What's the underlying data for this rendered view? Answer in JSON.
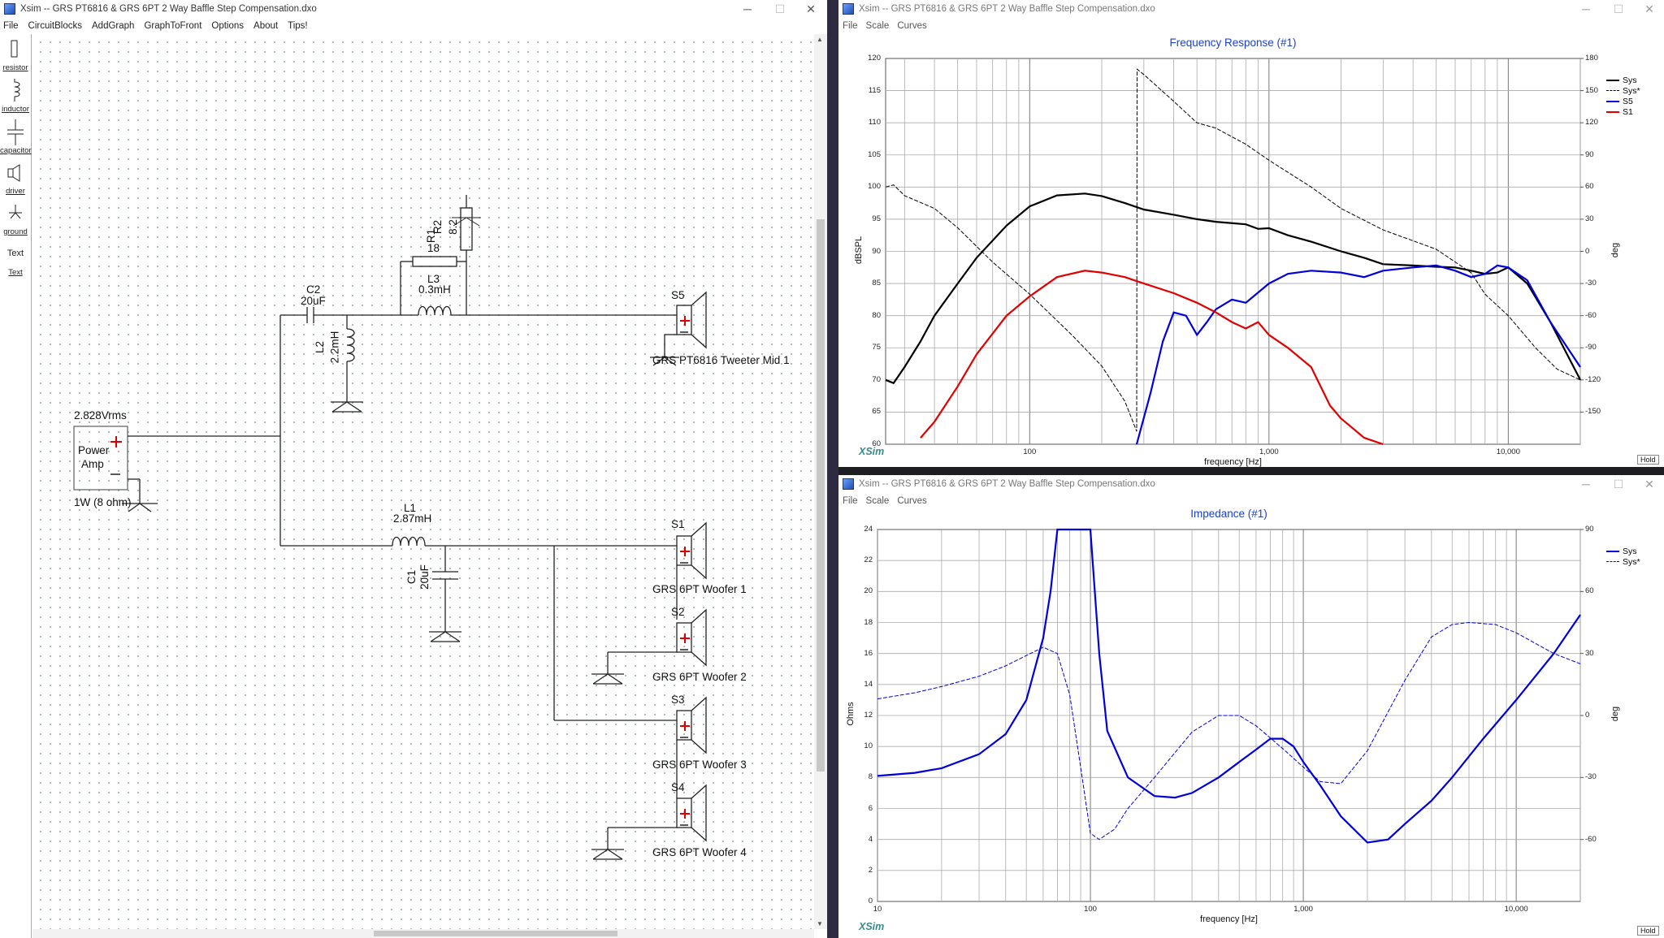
{
  "left_window": {
    "title": "Xsim -- GRS PT6816 & GRS 6PT 2 Way Baffle Step Compensation.dxo",
    "menu": [
      "File",
      "CircuitBlocks",
      "AddGraph",
      "GraphToFront",
      "Options",
      "About",
      "Tips!"
    ],
    "tools": [
      {
        "label": "resistor",
        "icon": "resistor-icon"
      },
      {
        "label": "inductor",
        "icon": "inductor-icon"
      },
      {
        "label": "capacitor",
        "icon": "capacitor-icon"
      },
      {
        "label": "driver",
        "icon": "driver-icon"
      },
      {
        "label": "ground",
        "icon": "ground-icon"
      },
      {
        "label": "Text",
        "icon": "text-icon"
      },
      {
        "label": "Text",
        "icon": "text-link"
      }
    ],
    "schematic": {
      "source_voltage": "2.828Vrms",
      "source_name_1": "Power",
      "source_name_2": "Amp",
      "source_rating": "1W (8 ohm)",
      "c2_name": "C2",
      "c2_value": "20uF",
      "l2_name": "L2",
      "l2_value": "2.2mH",
      "l3_name": "L3",
      "l3_value": "0.3mH",
      "r1_name": "R1",
      "r1_value": "18",
      "r2_name": "R2",
      "r2_value": "8.2",
      "l1_name": "L1",
      "l1_value": "2.87mH",
      "c1_name": "C1",
      "c1_value": "20uF",
      "drivers": [
        {
          "id": "S5",
          "label": "GRS PT6816 Tweeter Mid 1"
        },
        {
          "id": "S1",
          "label": "GRS 6PT Woofer 1"
        },
        {
          "id": "S2",
          "label": "GRS 6PT Woofer 2"
        },
        {
          "id": "S3",
          "label": "GRS 6PT Woofer 3"
        },
        {
          "id": "S4",
          "label": "GRS 6PT Woofer 4"
        }
      ]
    }
  },
  "freq_window": {
    "title": "Xsim -- GRS PT6816 & GRS 6PT 2 Way Baffle Step Compensation.dxo",
    "menu": [
      "File",
      "Scale",
      "Curves"
    ],
    "brand": "XSim",
    "hold": "Hold"
  },
  "imp_window": {
    "title": "Xsim -- GRS PT6816 & GRS 6PT 2 Way Baffle Step Compensation.dxo",
    "menu": [
      "File",
      "Scale",
      "Curves"
    ],
    "brand": "XSim",
    "hold": "Hold"
  },
  "chart_data": [
    {
      "type": "line",
      "title": "Frequency Response (#1)",
      "xlabel": "frequency [Hz]",
      "ylabel": "dBSPL",
      "y2label": "deg",
      "xscale": "log",
      "xlim": [
        25,
        20000
      ],
      "ylim": [
        60,
        120
      ],
      "y2lim": [
        -180,
        180
      ],
      "x_tick_labels": [
        "100",
        "1,000",
        "10,000"
      ],
      "y_tick_labels": [
        "60",
        "65",
        "70",
        "75",
        "80",
        "85",
        "90",
        "95",
        "100",
        "105",
        "110",
        "115",
        "120"
      ],
      "y2_tick_labels": [
        "-150",
        "-120",
        "-90",
        "-60",
        "-30",
        "0",
        "30",
        "60",
        "90",
        "120",
        "150",
        "180"
      ],
      "grid": true,
      "legend_position": "top-right",
      "series": [
        {
          "name": "Sys",
          "color": "#000000",
          "style": "solid",
          "axis": "left",
          "x": [
            25,
            27,
            30,
            35,
            40,
            50,
            60,
            80,
            100,
            130,
            170,
            200,
            250,
            300,
            400,
            500,
            600,
            800,
            900,
            1000,
            1200,
            1500,
            2000,
            2500,
            3000,
            4000,
            5000,
            6000,
            7000,
            8000,
            9000,
            10000,
            12000,
            15000,
            20000
          ],
          "y": [
            70,
            69.5,
            72,
            76,
            80,
            85,
            89,
            94,
            97,
            98.7,
            99,
            98.6,
            97.5,
            96.5,
            95.7,
            95,
            94.6,
            94.2,
            93.5,
            93.6,
            92.5,
            91.5,
            90,
            89,
            88,
            87.8,
            87.6,
            87.5,
            87,
            86.5,
            86.7,
            87.5,
            85,
            79,
            70
          ]
        },
        {
          "name": "Sys*",
          "color": "#000000",
          "style": "dashed",
          "axis": "right",
          "x": [
            25,
            27,
            30,
            40,
            50,
            70,
            100,
            150,
            200,
            250,
            280,
            281,
            300,
            400,
            500,
            600,
            800,
            1000,
            1500,
            2000,
            3000,
            5000,
            7000,
            8000,
            10000,
            13000,
            16000,
            20000
          ],
          "y": [
            60,
            62,
            52,
            40,
            22,
            -10,
            -40,
            -78,
            -107,
            -140,
            -168,
            170,
            165,
            140,
            120,
            115,
            100,
            85,
            60,
            40,
            20,
            2,
            -20,
            -40,
            -60,
            -90,
            -110,
            -120
          ]
        },
        {
          "name": "S5",
          "color": "#0000dd",
          "style": "solid",
          "axis": "left",
          "x": [
            280,
            320,
            360,
            400,
            450,
            500,
            550,
            600,
            700,
            800,
            1000,
            1200,
            1500,
            2000,
            2500,
            3000,
            4000,
            5000,
            6000,
            7000,
            8000,
            9000,
            10000,
            12000,
            15000,
            20000
          ],
          "y": [
            60,
            68,
            76,
            80.5,
            80,
            77,
            79,
            81,
            82.5,
            82,
            85,
            86.5,
            87,
            86.7,
            86,
            87,
            87.5,
            87.8,
            87,
            86,
            86.5,
            87.8,
            87.5,
            85.5,
            79,
            72
          ]
        },
        {
          "name": "S1",
          "color": "#e00000",
          "style": "solid",
          "axis": "left",
          "x": [
            35,
            40,
            50,
            60,
            80,
            100,
            130,
            170,
            200,
            250,
            300,
            400,
            500,
            600,
            700,
            800,
            900,
            1000,
            1200,
            1500,
            1800,
            2000,
            2500,
            3000
          ],
          "y": [
            61,
            63.5,
            69,
            74,
            80,
            83,
            86,
            87,
            86.7,
            86,
            85,
            83.5,
            82,
            80.5,
            79,
            78,
            79,
            77,
            75,
            72,
            66,
            64,
            61,
            59
          ]
        }
      ]
    },
    {
      "type": "line",
      "title": "Impedance (#1)",
      "xlabel": "frequency [Hz]",
      "ylabel": "Ohms",
      "y2label": "deg",
      "xscale": "log",
      "xlim": [
        10,
        20000
      ],
      "ylim": [
        0,
        24
      ],
      "y2lim": [
        -90,
        90
      ],
      "x_tick_labels": [
        "10",
        "100",
        "1,000",
        "10,000"
      ],
      "y_tick_labels": [
        "0",
        "2",
        "4",
        "6",
        "8",
        "10",
        "12",
        "14",
        "16",
        "18",
        "20",
        "22",
        "24"
      ],
      "y2_tick_labels": [
        "-60",
        "-30",
        "0",
        "30",
        "60",
        "90"
      ],
      "grid": true,
      "legend_position": "top-right",
      "series": [
        {
          "name": "Sys",
          "color": "#0000dd",
          "style": "solid",
          "axis": "left",
          "x": [
            10,
            15,
            20,
            30,
            40,
            50,
            60,
            65,
            70,
            72,
            80,
            100,
            110,
            120,
            150,
            200,
            250,
            300,
            400,
            500,
            600,
            700,
            800,
            900,
            1000,
            1200,
            1500,
            2000,
            2500,
            3000,
            4000,
            5000,
            7000,
            10000,
            15000,
            20000
          ],
          "y": [
            8.1,
            8.3,
            8.6,
            9.5,
            10.8,
            13,
            17,
            20,
            24,
            24,
            24,
            24,
            16,
            11,
            8,
            6.8,
            6.7,
            7,
            8,
            9,
            9.8,
            10.5,
            10.5,
            10,
            9,
            7.5,
            5.5,
            3.8,
            4,
            5,
            6.5,
            8,
            10.5,
            13,
            16,
            18.5
          ]
        },
        {
          "name": "Sys*",
          "color": "#0000dd",
          "style": "dashed",
          "axis": "right",
          "x": [
            10,
            15,
            20,
            30,
            40,
            50,
            60,
            70,
            80,
            90,
            100,
            110,
            130,
            150,
            200,
            300,
            400,
            500,
            600,
            800,
            1000,
            1200,
            1500,
            2000,
            3000,
            4000,
            5000,
            6000,
            8000,
            10000,
            15000,
            20000
          ],
          "y": [
            8,
            11,
            14,
            19,
            24,
            29,
            33,
            30,
            10,
            -25,
            -57,
            -60,
            -55,
            -45,
            -30,
            -8,
            0,
            0,
            -5,
            -16,
            -25,
            -32,
            -33,
            -17,
            17,
            38,
            44,
            45,
            44,
            40,
            30,
            25
          ]
        }
      ]
    }
  ]
}
